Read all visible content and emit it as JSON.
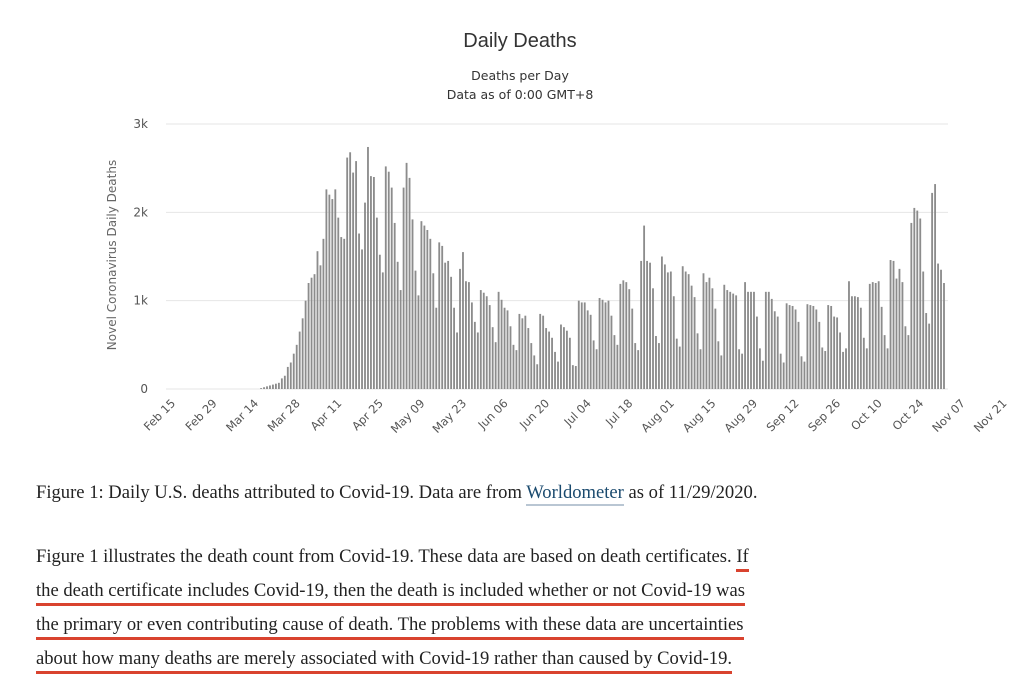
{
  "chart_data": {
    "type": "bar",
    "title": "Daily Deaths",
    "subtitle": "Deaths per Day",
    "subtitle2": "Data as of 0:00 GMT+8",
    "ylabel": "Novel Coronavirus Daily Deaths",
    "ylim": [
      0,
      3000
    ],
    "yticks": [
      0,
      1000,
      2000,
      3000
    ],
    "ytick_labels": [
      "0",
      "1k",
      "2k",
      "3k"
    ],
    "xtick_labels": [
      "Feb 15",
      "Feb 29",
      "Mar 14",
      "Mar 28",
      "Apr 11",
      "Apr 25",
      "May 09",
      "May 23",
      "Jun 06",
      "Jun 20",
      "Jul 04",
      "Jul 18",
      "Aug 01",
      "Aug 15",
      "Aug 29",
      "Sep 12",
      "Sep 26",
      "Oct 10",
      "Oct 24",
      "Nov 07",
      "Nov 21"
    ],
    "grid": true,
    "legend": "none",
    "bar_color": "#8c8c8c",
    "start_label": "Feb 15",
    "values": [
      0,
      0,
      0,
      0,
      0,
      0,
      0,
      0,
      0,
      0,
      0,
      0,
      0,
      0,
      0,
      0,
      0,
      0,
      0,
      0,
      0,
      0,
      0,
      0,
      0,
      0,
      0,
      0,
      0,
      0,
      10,
      20,
      30,
      40,
      50,
      60,
      70,
      120,
      150,
      250,
      300,
      400,
      500,
      650,
      800,
      1000,
      1200,
      1260,
      1300,
      1560,
      1400,
      1700,
      2260,
      2200,
      2150,
      2260,
      1940,
      1720,
      1700,
      2620,
      2680,
      2450,
      2580,
      1760,
      1580,
      2110,
      2740,
      2410,
      2400,
      1940,
      1520,
      1320,
      2520,
      2460,
      2280,
      1880,
      1440,
      1120,
      2280,
      2560,
      2390,
      1920,
      1340,
      1060,
      1900,
      1850,
      1800,
      1700,
      1310,
      920,
      1660,
      1620,
      1430,
      1450,
      1270,
      920,
      640,
      1360,
      1550,
      1220,
      1210,
      980,
      760,
      640,
      1120,
      1090,
      1050,
      950,
      700,
      530,
      1100,
      1010,
      920,
      890,
      710,
      500,
      440,
      850,
      800,
      830,
      690,
      520,
      380,
      280,
      850,
      830,
      690,
      650,
      580,
      420,
      310,
      730,
      700,
      660,
      580,
      270,
      260,
      1000,
      980,
      980,
      890,
      840,
      550,
      450,
      1030,
      1010,
      980,
      1000,
      830,
      610,
      500,
      1190,
      1230,
      1210,
      1130,
      910,
      520,
      440,
      1450,
      1850,
      1450,
      1430,
      1140,
      600,
      520,
      1500,
      1410,
      1320,
      1330,
      1050,
      570,
      480,
      1390,
      1330,
      1300,
      1170,
      1040,
      630,
      450,
      1310,
      1210,
      1260,
      1140,
      910,
      540,
      380,
      1180,
      1120,
      1100,
      1080,
      1060,
      450,
      400,
      1210,
      1100,
      1100,
      1100,
      820,
      460,
      320,
      1100,
      1100,
      1020,
      880,
      820,
      400,
      300,
      970,
      950,
      940,
      900,
      760,
      370,
      310,
      960,
      950,
      940,
      900,
      760,
      470,
      430,
      950,
      940,
      820,
      810,
      640,
      420,
      460,
      1220,
      1050,
      1050,
      1040,
      920,
      580,
      460,
      1190,
      1210,
      1200,
      1220,
      930,
      610,
      460,
      1460,
      1450,
      1250,
      1360,
      1210,
      710,
      610,
      1880,
      2050,
      2020,
      1930,
      1330,
      860,
      740,
      2220,
      2320,
      1420,
      1350,
      1200
    ]
  },
  "caption": {
    "before": "Figure 1: Daily U.S. deaths attributed to Covid-19. Data are from ",
    "link": "Worldometer",
    "after": " as of 11/29/2020."
  },
  "paragraph": {
    "line1_plain": "Figure 1 illustrates the death count from Covid-19. These data are based on death certificates. ",
    "line1_hl": "If",
    "line2": "the death certificate includes Covid-19, then the death is included whether or not Covid-19 was",
    "line3": "the primary or even contributing cause of death. The problems with these data are uncertainties",
    "line4": "about how many deaths are merely associated with Covid-19 rather than caused by Covid-19."
  },
  "colors": {
    "highlight": "#d9432f",
    "link": "#1a4a6e"
  }
}
